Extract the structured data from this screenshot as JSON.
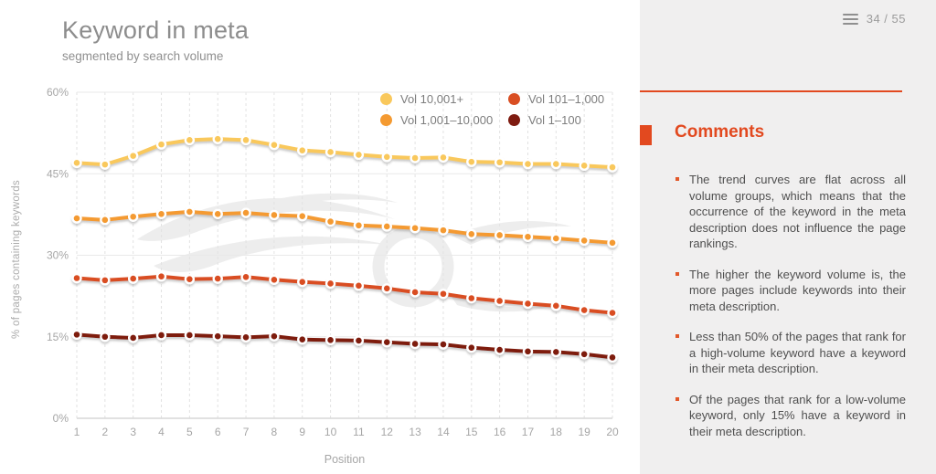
{
  "page": {
    "bg": "#FFFFFF",
    "panel_bg": "#F0EFEF",
    "accent": "#E2491F"
  },
  "header": {
    "title": "Keyword in meta",
    "subtitle": "segmented by search volume"
  },
  "pager": {
    "label": "34 / 55",
    "menu_icon": "hamburger-icon"
  },
  "chart_data": {
    "type": "line",
    "title": "Keyword in meta",
    "x": [
      1,
      2,
      3,
      4,
      5,
      6,
      7,
      8,
      9,
      10,
      11,
      12,
      13,
      14,
      15,
      16,
      17,
      18,
      19,
      20
    ],
    "xlabel": "Position",
    "ylabel": "% of pages containing keywords",
    "ylim": [
      0,
      60
    ],
    "yticks": [
      0,
      15,
      30,
      45,
      60
    ],
    "ytick_suffix": "%",
    "grid": true,
    "legend_position": "top-center",
    "legend_display_order": [
      0,
      2,
      1,
      3
    ],
    "series": [
      {
        "name": "Vol 10,001+",
        "color": "#F9C85C",
        "values": [
          47.0,
          46.7,
          48.3,
          50.4,
          51.2,
          51.4,
          51.2,
          50.3,
          49.3,
          49.0,
          48.5,
          48.1,
          47.9,
          48.0,
          47.2,
          47.1,
          46.8,
          46.8,
          46.5,
          46.2
        ]
      },
      {
        "name": "Vol 1,001–10,000",
        "color": "#F49A31",
        "values": [
          36.8,
          36.5,
          37.1,
          37.6,
          38.0,
          37.6,
          37.8,
          37.4,
          37.2,
          36.2,
          35.5,
          35.3,
          35.0,
          34.6,
          33.9,
          33.7,
          33.4,
          33.1,
          32.7,
          32.3
        ]
      },
      {
        "name": "Vol 101–1,000",
        "color": "#D94E22",
        "values": [
          25.8,
          25.4,
          25.7,
          26.1,
          25.6,
          25.7,
          26.0,
          25.5,
          25.1,
          24.8,
          24.4,
          23.9,
          23.2,
          22.9,
          22.1,
          21.6,
          21.1,
          20.7,
          19.9,
          19.4
        ]
      },
      {
        "name": "Vol 1–100",
        "color": "#7E1B10",
        "values": [
          15.4,
          15.0,
          14.8,
          15.3,
          15.3,
          15.1,
          14.9,
          15.1,
          14.5,
          14.4,
          14.3,
          14.0,
          13.7,
          13.6,
          13.0,
          12.6,
          12.3,
          12.2,
          11.8,
          11.2
        ]
      }
    ]
  },
  "comments": {
    "heading": "Comments",
    "items": [
      "The trend curves are flat across all volume groups, which means that the occurrence of the keyword in the meta description does not influence the page rankings.",
      "The higher the keyword volume is, the more pages include keywords into their meta description.",
      "Less than 50% of the pages that rank for a high-volume keyword have a keyword in their meta description.",
      "Of the pages that rank for a low-volume keyword, only 15% have a keyword in their meta description."
    ]
  }
}
